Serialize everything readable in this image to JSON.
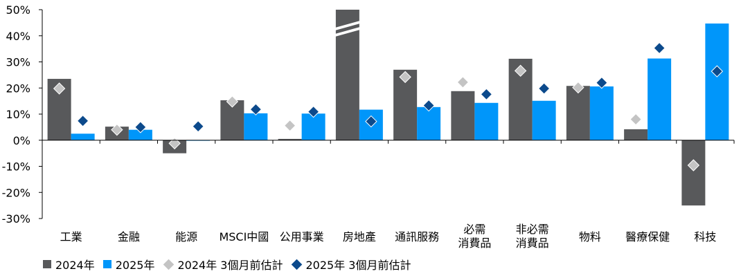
{
  "chart_data": {
    "type": "bar",
    "categories": [
      "工業",
      "金融",
      "能源",
      "MSCI中國",
      "公用事業",
      "房地產",
      "通訊服務",
      "必需\n消費品",
      "非必需\n消費品",
      "物料",
      "醫療保健",
      "科技"
    ],
    "series": [
      {
        "name": "2024年",
        "kind": "bar",
        "color": "#58595b",
        "values": [
          23.5,
          5.2,
          -5,
          15.3,
          0.5,
          50,
          27,
          18.8,
          31.2,
          20.8,
          4.2,
          -25
        ]
      },
      {
        "name": "2025年",
        "kind": "bar",
        "color": "#0096fa",
        "values": [
          2.5,
          4,
          0,
          10.3,
          10.2,
          11.7,
          12.7,
          14.3,
          15.1,
          20.6,
          31.3,
          44.7
        ]
      },
      {
        "name": "2024年 3個月前估計",
        "kind": "marker",
        "color": "#c4c4c4",
        "values": [
          19.8,
          4,
          -1.2,
          14.8,
          5.6,
          null,
          24.2,
          22.2,
          26.6,
          20.2,
          8,
          -9.6
        ]
      },
      {
        "name": "2025年 3個月前估計",
        "kind": "marker",
        "color": "#0c4a8c",
        "values": [
          7.4,
          5,
          5.3,
          11.8,
          10.9,
          7.2,
          13.3,
          17.6,
          19.8,
          22,
          35.3,
          26.4
        ]
      }
    ],
    "truncated": [
      {
        "series": "2024年",
        "category": "房地產"
      }
    ],
    "yticks": [
      "50%",
      "40%",
      "30%",
      "20%",
      "10%",
      "0%",
      "-10%",
      "-20%",
      "-30%"
    ],
    "ylim": [
      -30,
      50
    ],
    "legend_position": "bottom-left",
    "grid": false
  }
}
